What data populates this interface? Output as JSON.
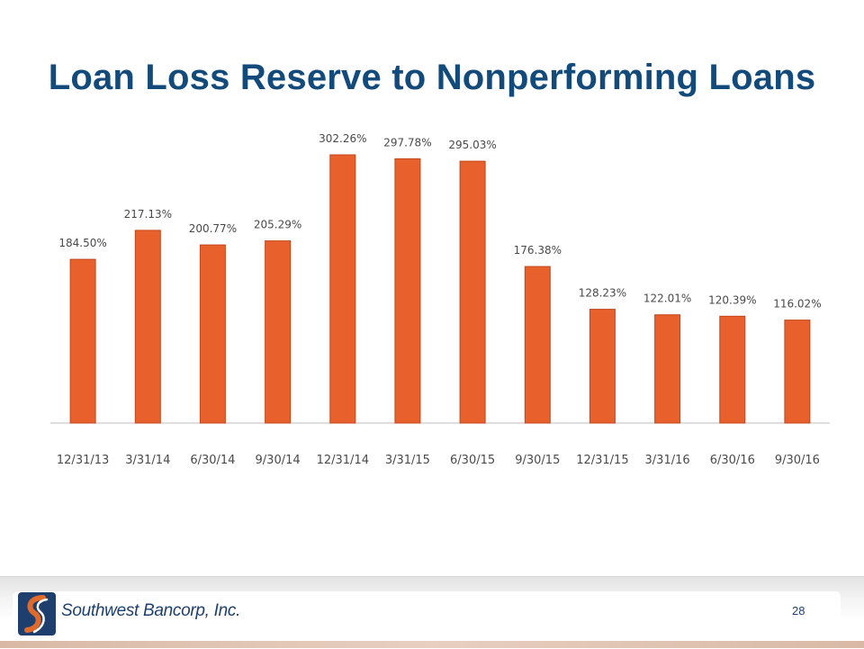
{
  "slide": {
    "title": "Loan Loss Reserve to Nonperforming Loans",
    "page_number": "28"
  },
  "footer": {
    "company_name": "Southwest Bancorp, Inc."
  },
  "colors": {
    "title": "#124a7c",
    "bar": "#e8602c",
    "bar_stroke": "#c2461a",
    "axis_text": "#4a4a4a",
    "logo_navy": "#1e3f6e",
    "logo_orange": "#e06a2c"
  },
  "chart_data": {
    "type": "bar",
    "categories": [
      "12/31/13",
      "3/31/14",
      "6/30/14",
      "9/30/14",
      "12/31/14",
      "3/31/15",
      "6/30/15",
      "9/30/15",
      "12/31/15",
      "3/31/16",
      "6/30/16",
      "9/30/16"
    ],
    "values": [
      184.5,
      217.13,
      200.77,
      205.29,
      302.26,
      297.78,
      295.03,
      176.38,
      128.23,
      122.01,
      120.39,
      116.02
    ],
    "data_labels": [
      "184.50%",
      "217.13%",
      "200.77%",
      "205.29%",
      "302.26%",
      "297.78%",
      "295.03%",
      "176.38%",
      "128.23%",
      "122.01%",
      "120.39%",
      "116.02%"
    ],
    "title": "Loan Loss Reserve to Nonperforming Loans",
    "xlabel": "",
    "ylabel": "",
    "ylim": [
      0,
      302.26
    ],
    "grid": false,
    "legend": "none"
  }
}
